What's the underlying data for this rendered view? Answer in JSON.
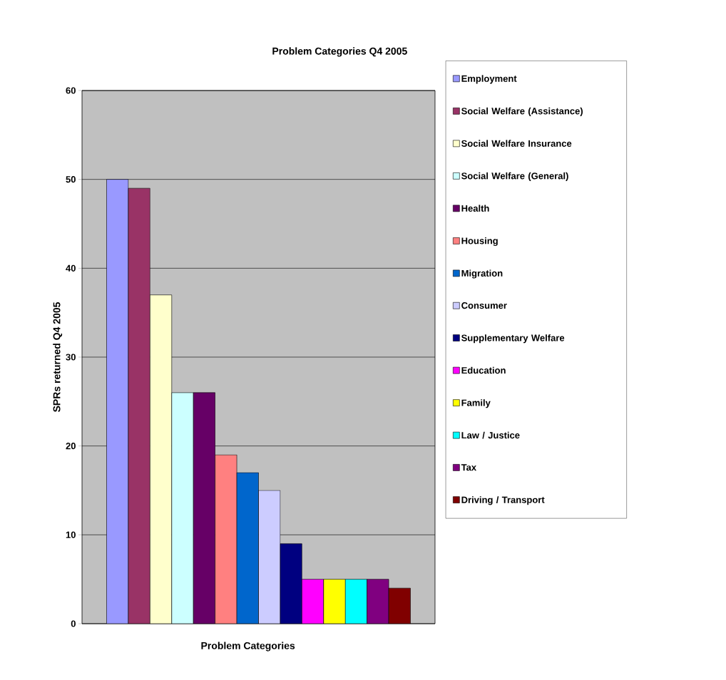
{
  "chart_data": {
    "type": "bar",
    "title": "Problem Categories Q4 2005",
    "xlabel": "Problem Categories",
    "ylabel": "SPRs returned Q4 2005",
    "categories": [
      null
    ],
    "series": [
      {
        "name": "Employment",
        "color": "#9999ff",
        "values": [
          50
        ]
      },
      {
        "name": "Social Welfare (Assistance)",
        "color": "#993366",
        "values": [
          49
        ]
      },
      {
        "name": "Social Welfare Insurance",
        "color": "#ffffcc",
        "values": [
          37
        ]
      },
      {
        "name": "Social Welfare (General)",
        "color": "#ccffff",
        "values": [
          26
        ]
      },
      {
        "name": "Health",
        "color": "#660066",
        "values": [
          26
        ]
      },
      {
        "name": "Housing",
        "color": "#ff8080",
        "values": [
          19
        ]
      },
      {
        "name": "Migration",
        "color": "#0066cc",
        "values": [
          17
        ]
      },
      {
        "name": "Consumer",
        "color": "#ccccff",
        "values": [
          15
        ]
      },
      {
        "name": "Supplementary Welfare",
        "color": "#000080",
        "values": [
          9
        ]
      },
      {
        "name": "Education",
        "color": "#ff00ff",
        "values": [
          5
        ]
      },
      {
        "name": "Family",
        "color": "#ffff00",
        "values": [
          5
        ]
      },
      {
        "name": "Law / Justice",
        "color": "#00ffff",
        "values": [
          5
        ]
      },
      {
        "name": "Tax",
        "color": "#800080",
        "values": [
          5
        ]
      },
      {
        "name": "Driving / Transport",
        "color": "#800000",
        "values": [
          4
        ]
      }
    ],
    "ylim": [
      0,
      60
    ],
    "yticks": [
      0,
      10,
      20,
      30,
      40,
      50,
      60
    ],
    "grid": "y",
    "legend": "right"
  }
}
